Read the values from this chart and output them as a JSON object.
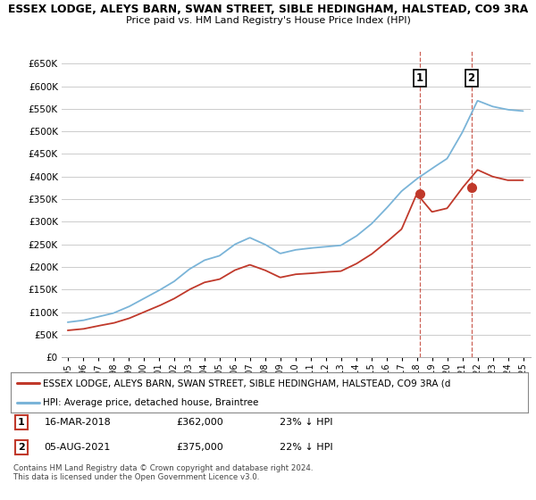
{
  "title1": "ESSEX LODGE, ALEYS BARN, SWAN STREET, SIBLE HEDINGHAM, HALSTEAD, CO9 3RA",
  "title2": "Price paid vs. HM Land Registry's House Price Index (HPI)",
  "ylim": [
    0,
    680000
  ],
  "yticks": [
    0,
    50000,
    100000,
    150000,
    200000,
    250000,
    300000,
    350000,
    400000,
    450000,
    500000,
    550000,
    600000,
    650000
  ],
  "legend_entry1": "ESSEX LODGE, ALEYS BARN, SWAN STREET, SIBLE HEDINGHAM, HALSTEAD, CO9 3RA (d",
  "legend_entry2": "HPI: Average price, detached house, Braintree",
  "table_rows": [
    [
      "1",
      "16-MAR-2018",
      "£362,000",
      "23% ↓ HPI"
    ],
    [
      "2",
      "05-AUG-2021",
      "£375,000",
      "22% ↓ HPI"
    ]
  ],
  "footnote": "Contains HM Land Registry data © Crown copyright and database right 2024.\nThis data is licensed under the Open Government Licence v3.0.",
  "hpi_color": "#7ab4d8",
  "price_color": "#c0392b",
  "vline_color": "#c0392b",
  "background_color": "#ffffff",
  "grid_color": "#cccccc",
  "sale1_year": 2018.21,
  "sale2_year": 2021.59,
  "sale1_price": 362000,
  "sale2_price": 375000,
  "hpi_control_years": [
    1995,
    1996,
    1997,
    1998,
    1999,
    2000,
    2001,
    2002,
    2003,
    2004,
    2005,
    2006,
    2007,
    2008,
    2009,
    2010,
    2011,
    2012,
    2013,
    2014,
    2015,
    2016,
    2017,
    2018,
    2019,
    2020,
    2021,
    2022,
    2023,
    2024,
    2025
  ],
  "hpi_control_vals": [
    78000,
    82000,
    90000,
    98000,
    112000,
    130000,
    148000,
    168000,
    195000,
    215000,
    225000,
    250000,
    265000,
    250000,
    230000,
    238000,
    242000,
    245000,
    248000,
    268000,
    295000,
    330000,
    368000,
    395000,
    418000,
    440000,
    498000,
    568000,
    555000,
    548000,
    545000
  ],
  "price_control_years": [
    1995,
    1996,
    1997,
    1998,
    1999,
    2000,
    2001,
    2002,
    2003,
    2004,
    2005,
    2006,
    2007,
    2008,
    2009,
    2010,
    2011,
    2012,
    2013,
    2014,
    2015,
    2016,
    2017,
    2018,
    2019,
    2020,
    2021,
    2022,
    2023,
    2024,
    2025
  ],
  "price_control_vals": [
    60000,
    63000,
    70000,
    76000,
    86000,
    100000,
    114000,
    130000,
    150000,
    166000,
    173000,
    193000,
    205000,
    193000,
    177000,
    184000,
    186000,
    189000,
    191000,
    207000,
    228000,
    255000,
    284000,
    362000,
    322000,
    330000,
    375000,
    415000,
    400000,
    392000,
    392000
  ]
}
